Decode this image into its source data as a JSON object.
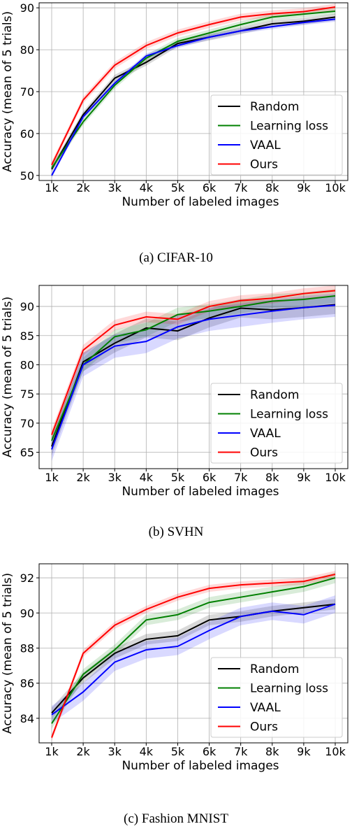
{
  "series_colors": {
    "Random": "#000000",
    "Learning loss": "#008000",
    "VAAL": "#0000ff",
    "Ours": "#ff0000"
  },
  "chart_data": [
    {
      "type": "line",
      "caption": "(a) CIFAR-10",
      "xlabel": "Number of labeled images",
      "ylabel": "Accuracy (mean of 5 trials)",
      "categories": [
        "1k",
        "2k",
        "3k",
        "4k",
        "5k",
        "6k",
        "7k",
        "8k",
        "9k",
        "10k"
      ],
      "ylim": [
        48.8,
        91.2
      ],
      "yticks": [
        50,
        60,
        70,
        80,
        90
      ],
      "grid": true,
      "legend": "lower-right",
      "series": [
        {
          "name": "Random",
          "values": [
            51.5,
            64.5,
            73.2,
            77.0,
            81.5,
            83.0,
            84.5,
            86.2,
            86.8,
            87.8
          ],
          "band": 0.8
        },
        {
          "name": "Learning loss",
          "values": [
            51.8,
            62.8,
            71.5,
            78.0,
            82.0,
            84.0,
            86.0,
            87.8,
            88.5,
            89.2
          ],
          "band": 0.8
        },
        {
          "name": "VAAL",
          "values": [
            50.0,
            64.0,
            72.0,
            78.5,
            81.0,
            83.0,
            84.5,
            85.5,
            86.5,
            87.3
          ],
          "band": 0.6
        },
        {
          "name": "Ours",
          "values": [
            52.5,
            68.0,
            76.3,
            81.0,
            84.0,
            86.0,
            87.8,
            88.6,
            89.1,
            90.2
          ],
          "band": 0.8
        }
      ]
    },
    {
      "type": "line",
      "caption": "(b) SVHN",
      "xlabel": "Number of labeled images",
      "ylabel": "Accuracy (mean of 5 trials)",
      "categories": [
        "1k",
        "2k",
        "3k",
        "4k",
        "5k",
        "6k",
        "7k",
        "8k",
        "9k",
        "10k"
      ],
      "ylim": [
        62.2,
        93.6
      ],
      "yticks": [
        65,
        70,
        75,
        80,
        85,
        90
      ],
      "grid": true,
      "legend": "lower-right",
      "series": [
        {
          "name": "Random",
          "values": [
            66.0,
            80.5,
            83.7,
            86.3,
            85.8,
            88.0,
            89.7,
            89.4,
            89.8,
            90.3
          ],
          "band": 1.6
        },
        {
          "name": "Learning loss",
          "values": [
            67.0,
            80.0,
            84.8,
            86.0,
            88.6,
            89.2,
            90.0,
            90.9,
            91.2,
            91.8
          ],
          "band": 1.2
        },
        {
          "name": "VAAL",
          "values": [
            65.5,
            80.0,
            83.2,
            84.0,
            86.5,
            87.8,
            88.5,
            89.2,
            89.8,
            90.2
          ],
          "band": 2.0
        },
        {
          "name": "Ours",
          "values": [
            68.0,
            82.5,
            86.8,
            88.2,
            87.8,
            90.0,
            91.0,
            91.4,
            92.2,
            92.7
          ],
          "band": 0.9
        }
      ]
    },
    {
      "type": "line",
      "caption": "(c) Fashion MNIST",
      "xlabel": "Number of labeled images",
      "ylabel": "Accuracy (mean of 5 trials)",
      "categories": [
        "1k",
        "2k",
        "3k",
        "4k",
        "5k",
        "6k",
        "7k",
        "8k",
        "9k",
        "10k"
      ],
      "ylim": [
        82.6,
        92.8
      ],
      "yticks": [
        84,
        86,
        88,
        90,
        92
      ],
      "grid": true,
      "legend": "lower-right",
      "series": [
        {
          "name": "Random",
          "values": [
            84.3,
            86.3,
            87.7,
            88.5,
            88.7,
            89.6,
            89.8,
            90.1,
            90.3,
            90.5
          ],
          "band": 0.3
        },
        {
          "name": "Learning loss",
          "values": [
            83.7,
            86.5,
            87.9,
            89.6,
            89.9,
            90.6,
            90.9,
            91.2,
            91.5,
            92.0
          ],
          "band": 0.3
        },
        {
          "name": "VAAL",
          "values": [
            84.2,
            85.5,
            87.2,
            87.9,
            88.1,
            89.0,
            89.8,
            90.1,
            89.9,
            90.5
          ],
          "band": 0.5
        },
        {
          "name": "Ours",
          "values": [
            82.9,
            87.7,
            89.3,
            90.2,
            90.9,
            91.4,
            91.6,
            91.7,
            91.8,
            92.2
          ],
          "band": 0.2
        }
      ]
    }
  ]
}
